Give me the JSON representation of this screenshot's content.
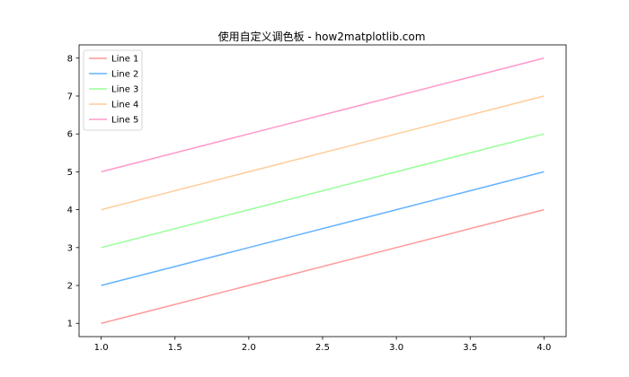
{
  "chart_data": {
    "type": "line",
    "title": "使用自定义调色板 - how2matplotlib.com",
    "xlabel": "",
    "ylabel": "",
    "x": [
      1.0,
      2.0,
      3.0,
      4.0
    ],
    "xlim": [
      0.85,
      4.15
    ],
    "ylim": [
      0.65,
      8.35
    ],
    "xticks": [
      1.0,
      1.5,
      2.0,
      2.5,
      3.0,
      3.5,
      4.0
    ],
    "xtick_labels": [
      "1.0",
      "1.5",
      "2.0",
      "2.5",
      "3.0",
      "3.5",
      "4.0"
    ],
    "yticks": [
      1,
      2,
      3,
      4,
      5,
      6,
      7,
      8
    ],
    "ytick_labels": [
      "1",
      "2",
      "3",
      "4",
      "5",
      "6",
      "7",
      "8"
    ],
    "grid": false,
    "legend_position": "top-left",
    "series": [
      {
        "name": "Line 1",
        "values": [
          1,
          2,
          3,
          4
        ],
        "color": "#ff9999"
      },
      {
        "name": "Line 2",
        "values": [
          2,
          3,
          4,
          5
        ],
        "color": "#66b3ff"
      },
      {
        "name": "Line 3",
        "values": [
          3,
          4,
          5,
          6
        ],
        "color": "#99ff99"
      },
      {
        "name": "Line 4",
        "values": [
          4,
          5,
          6,
          7
        ],
        "color": "#ffcc99"
      },
      {
        "name": "Line 5",
        "values": [
          5,
          6,
          7,
          8
        ],
        "color": "#ff99cc"
      }
    ]
  }
}
